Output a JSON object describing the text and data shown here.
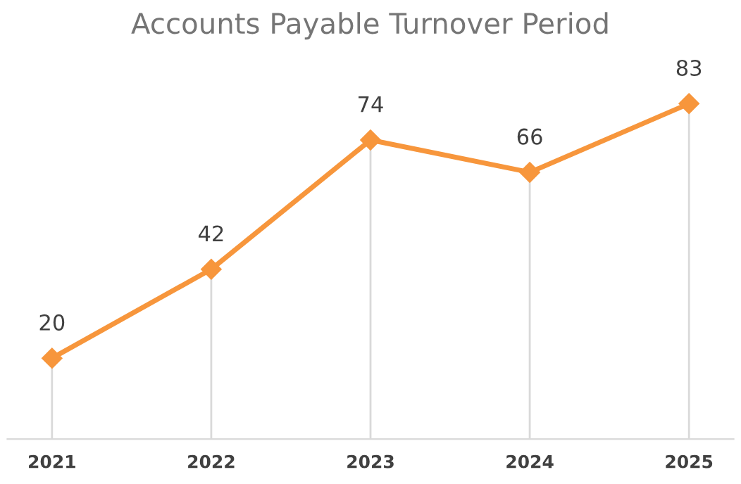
{
  "chart_data": {
    "type": "line",
    "title": "Accounts Payable Turnover Period",
    "categories": [
      "2021",
      "2022",
      "2023",
      "2024",
      "2025"
    ],
    "series": [
      {
        "color": "#f7963c",
        "values": [
          20,
          42,
          74,
          66,
          83
        ]
      }
    ],
    "grid": "x",
    "tick_labels": "x",
    "data_labels": true,
    "marker": "diamond",
    "line_style": "solid",
    "legend": false
  }
}
